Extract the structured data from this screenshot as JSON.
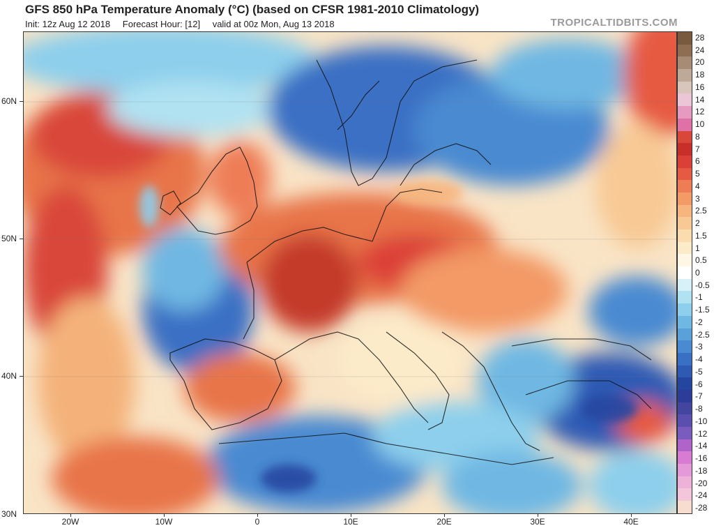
{
  "header": {
    "title": "GFS 850 hPa Temperature Anomaly (°C) (based on CFSR 1981-2010 Climatology)",
    "init": "Init: 12z Aug 12 2018",
    "forecast_hour": "Forecast Hour: [12]",
    "valid": "valid at 00z Mon, Aug 13 2018",
    "brand": "TROPICALTIDBITS.COM"
  },
  "map": {
    "lat_labels": [
      "60N",
      "50N",
      "40N",
      "30N"
    ],
    "lon_labels": [
      "20W",
      "10W",
      "0",
      "10E",
      "20E",
      "30E",
      "40E"
    ],
    "anomaly_colors": {
      "strong_warm": "#c43a2a",
      "warm": "#e8744a",
      "mild_warm": "#f4b27a",
      "slight_warm": "#f8dcae",
      "neutral": "#f9f6f0",
      "slight_cool": "#b9e2ef",
      "cool": "#74b6e0",
      "cold": "#3f7cc8",
      "strong_cold": "#234e9e"
    }
  },
  "colorbar": {
    "labels": [
      "28",
      "24",
      "20",
      "18",
      "16",
      "14",
      "12",
      "10",
      "8",
      "7",
      "6",
      "5",
      "4",
      "3",
      "2.5",
      "2",
      "1.5",
      "1",
      "0.5",
      "0",
      "-0.5",
      "-1",
      "-1.5",
      "-2",
      "-2.5",
      "-3",
      "-4",
      "-5",
      "-6",
      "-7",
      "-8",
      "-10",
      "-12",
      "-14",
      "-16",
      "-18",
      "-20",
      "-24",
      "-28"
    ],
    "colors": [
      "#7a5a3e",
      "#8e6d52",
      "#a88b74",
      "#bea897",
      "#d8c6bc",
      "#ecc6d6",
      "#e79ac0",
      "#e071a7",
      "#d9463a",
      "#c82e2a",
      "#dc3f38",
      "#e65a43",
      "#ee7d56",
      "#f39a66",
      "#f6b57e",
      "#f8c994",
      "#fadcae",
      "#fcebc9",
      "#fff6e5",
      "#ffffff",
      "#d8f1f8",
      "#b0e2f2",
      "#8dcfec",
      "#6fb8e3",
      "#5aa1da",
      "#4a8ad1",
      "#3a70c4",
      "#2e5ab4",
      "#2546a0",
      "#2d3c98",
      "#43459e",
      "#5a4fae",
      "#7a5cbf",
      "#b064c9",
      "#d87bd3",
      "#e49ad9",
      "#eeb2d8",
      "#f3c6dc",
      "#f7dcd0"
    ]
  }
}
